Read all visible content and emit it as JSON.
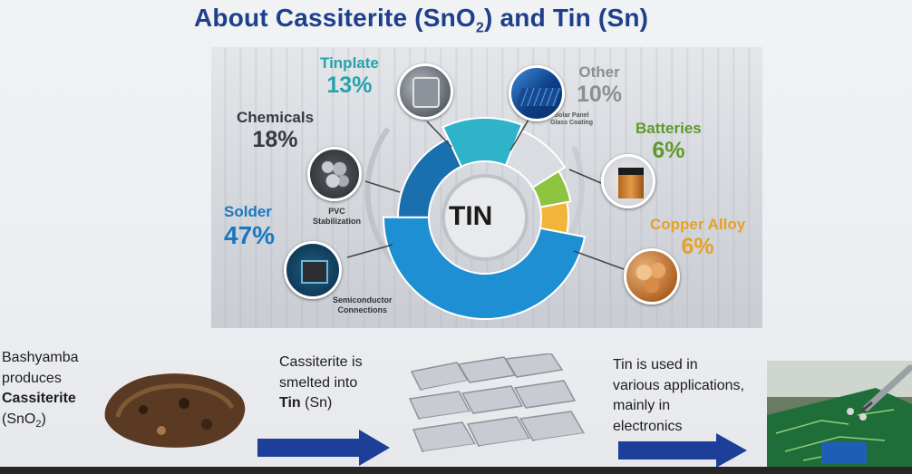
{
  "title": {
    "text_before": "About Cassiterite (SnO",
    "subscript": "2",
    "text_after": ") and Tin (Sn)"
  },
  "center_label": "TIN",
  "segments": [
    {
      "name": "Tinplate",
      "pct": "13%",
      "value": 13,
      "color": "#2eb3c9"
    },
    {
      "name": "Other",
      "pct": "10%",
      "value": 10,
      "color": "#d9dde2"
    },
    {
      "name": "Batteries",
      "pct": "6%",
      "value": 6,
      "color": "#8cc43f"
    },
    {
      "name": "Copper Alloy",
      "pct": "6%",
      "value": 6,
      "color": "#f2b53a"
    },
    {
      "name": "Solder",
      "pct": "47%",
      "value": 47,
      "color": "#1f8fd3"
    },
    {
      "name": "Chemicals",
      "pct": "18%",
      "value": 18,
      "color": "#1a6fae"
    }
  ],
  "sublabels": {
    "other": "Solar Panel\nGlass Coating",
    "chemicals": "PVC\nStabilization",
    "solder": "Semiconductor\nConnections"
  },
  "flow": {
    "step1": {
      "line1": "Bashyamba",
      "line2": "produces",
      "bold": "Cassiterite",
      "formula_before": "(SnO",
      "formula_sub": "2",
      "formula_after": ")"
    },
    "step2": {
      "line1": "Cassiterite is",
      "line2": "smelted into",
      "bold": "Tin",
      "after": " (Sn)"
    },
    "step3": {
      "line1": "Tin is used in",
      "line2": "various applications,",
      "line3": "mainly in",
      "line4": "electronics"
    }
  },
  "icons": [
    "tinplate-image-icon",
    "solar-panel-image-icon",
    "battery-image-icon",
    "pvc-image-icon",
    "chip-image-icon",
    "copper-image-icon",
    "ore-image-icon",
    "ingots-image-icon",
    "circuit-board-image-icon",
    "arrow-right-icon"
  ]
}
